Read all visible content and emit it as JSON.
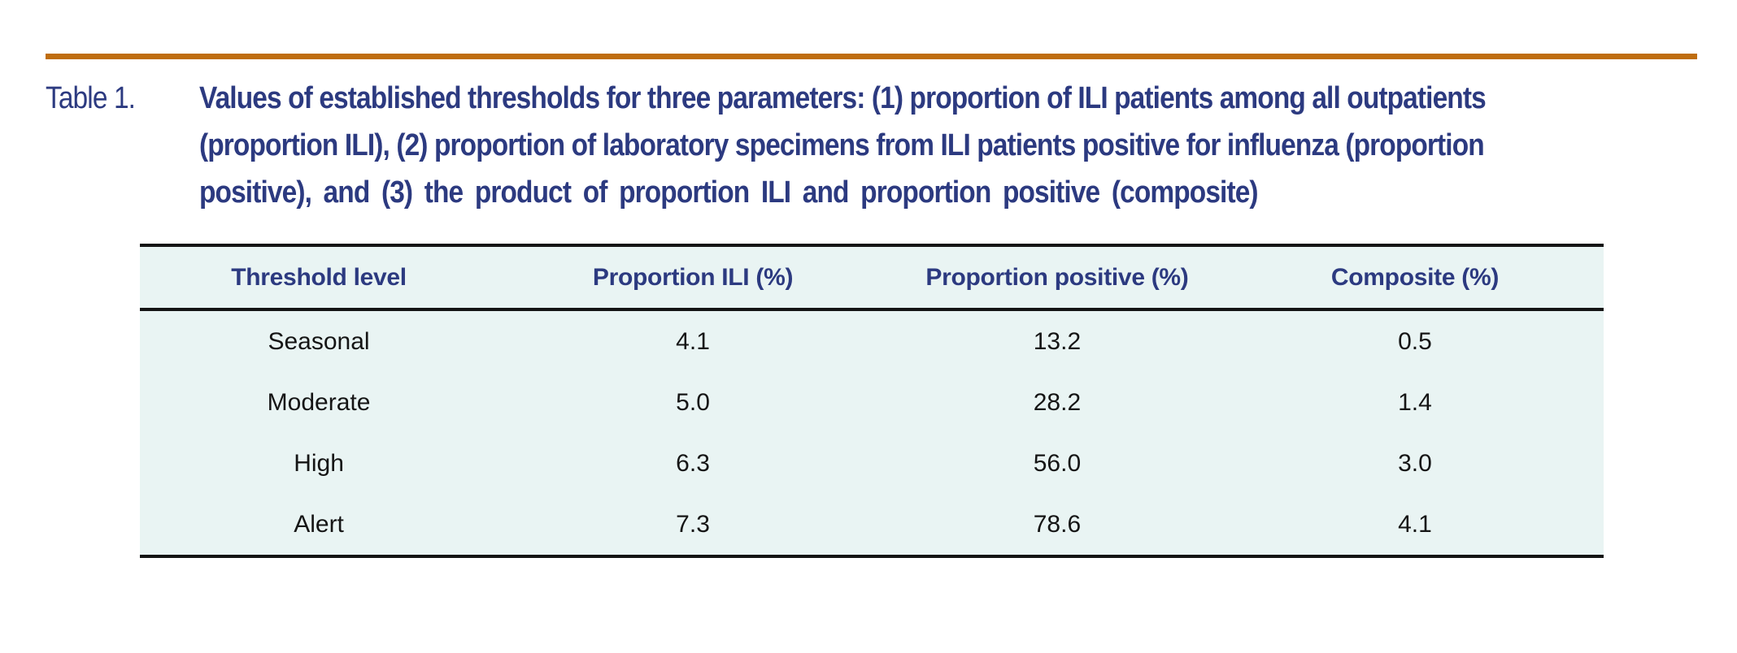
{
  "colors": {
    "rule_orange": "#bf6d0e",
    "caption_navy": "#2c3a80",
    "table_background": "#e9f4f3",
    "table_border": "#141414",
    "body_text": "#151515"
  },
  "caption": {
    "label": "Table 1.",
    "lines": [
      "Values of established thresholds for three parameters: (1) proportion of ILI patients among all outpatients",
      "(proportion ILI), (2) proportion of laboratory specimens from ILI patients positive for influenza (proportion",
      "positive), and (3) the product of proportion ILI and proportion positive (composite)"
    ]
  },
  "table": {
    "columns": [
      "Threshold level",
      "Proportion ILI (%)",
      "Proportion positive (%)",
      "Composite (%)"
    ],
    "rows": [
      [
        "Seasonal",
        "4.1",
        "13.2",
        "0.5"
      ],
      [
        "Moderate",
        "5.0",
        "28.2",
        "1.4"
      ],
      [
        "High",
        "6.3",
        "56.0",
        "3.0"
      ],
      [
        "Alert",
        "7.3",
        "78.6",
        "4.1"
      ]
    ]
  }
}
